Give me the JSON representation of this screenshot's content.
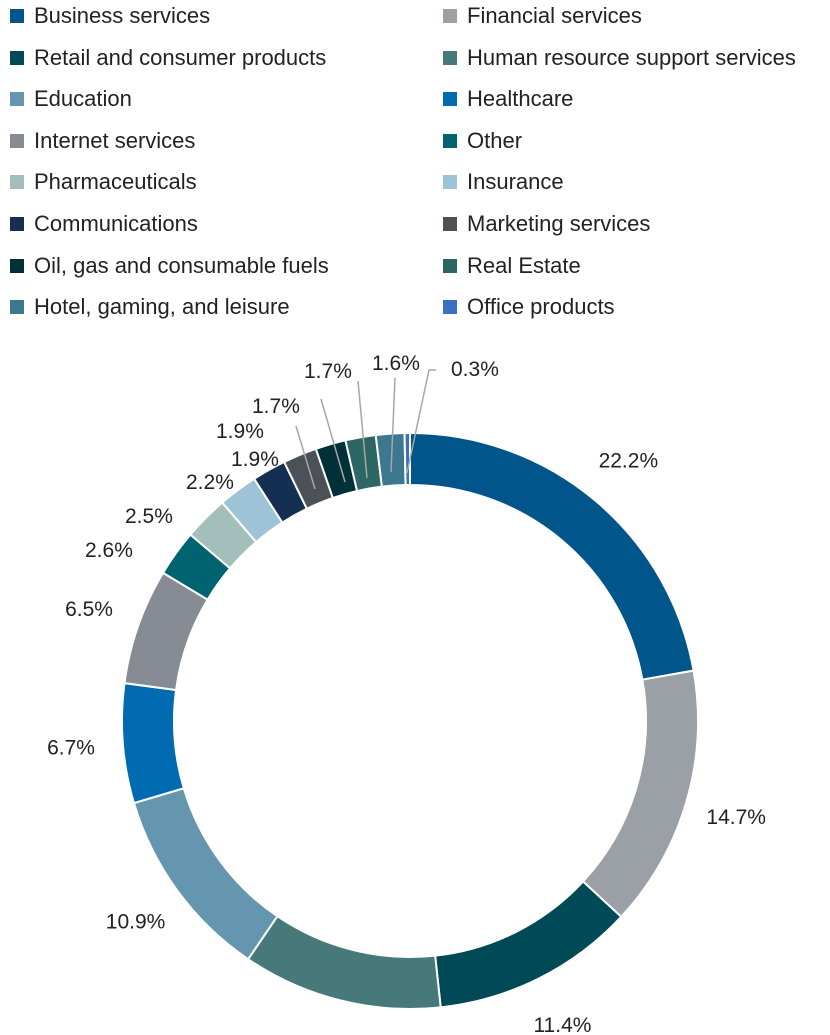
{
  "chart_data": {
    "type": "donut",
    "title": "",
    "legend_position": "top",
    "series": [
      {
        "label": "Business services",
        "value": 22.2,
        "display": "22.2%",
        "color": "#00558a"
      },
      {
        "label": "Financial services",
        "value": 14.7,
        "display": "14.7%",
        "color": "#9aa0a6"
      },
      {
        "label": "Retail and consumer products",
        "value": 11.4,
        "display": "11.4%",
        "color": "#004a57"
      },
      {
        "label": "Human resource support services",
        "value": 11.2,
        "display": "11.2%",
        "color": "#47797a"
      },
      {
        "label": "Education",
        "value": 10.9,
        "display": "10.9%",
        "color": "#6496b0"
      },
      {
        "label": "Healthcare",
        "value": 6.7,
        "display": "6.7%",
        "color": "#006bb0"
      },
      {
        "label": "Internet services",
        "value": 6.5,
        "display": "6.5%",
        "color": "#868b94"
      },
      {
        "label": "Other",
        "value": 2.6,
        "display": "2.6%",
        "color": "#006470"
      },
      {
        "label": "Pharmaceuticals",
        "value": 2.5,
        "display": "2.5%",
        "color": "#a4bebc"
      },
      {
        "label": "Insurance",
        "value": 2.2,
        "display": "2.2%",
        "color": "#9ec3d6"
      },
      {
        "label": "Communications",
        "value": 1.9,
        "display": "1.9%",
        "color": "#142f52"
      },
      {
        "label": "Marketing services",
        "value": 1.9,
        "display": "1.9%",
        "color": "#4c5158"
      },
      {
        "label": "Oil, gas and consumable fuels",
        "value": 1.7,
        "display": "1.7%",
        "color": "#003038"
      },
      {
        "label": "Real Estate",
        "value": 1.7,
        "display": "1.7%",
        "color": "#2c6665"
      },
      {
        "label": "Hotel, gaming, and leisure",
        "value": 1.6,
        "display": "1.6%",
        "color": "#3d7891"
      },
      {
        "label": "Office products",
        "value": 0.3,
        "display": "0.3%",
        "color": "#3b6fc4"
      }
    ]
  }
}
